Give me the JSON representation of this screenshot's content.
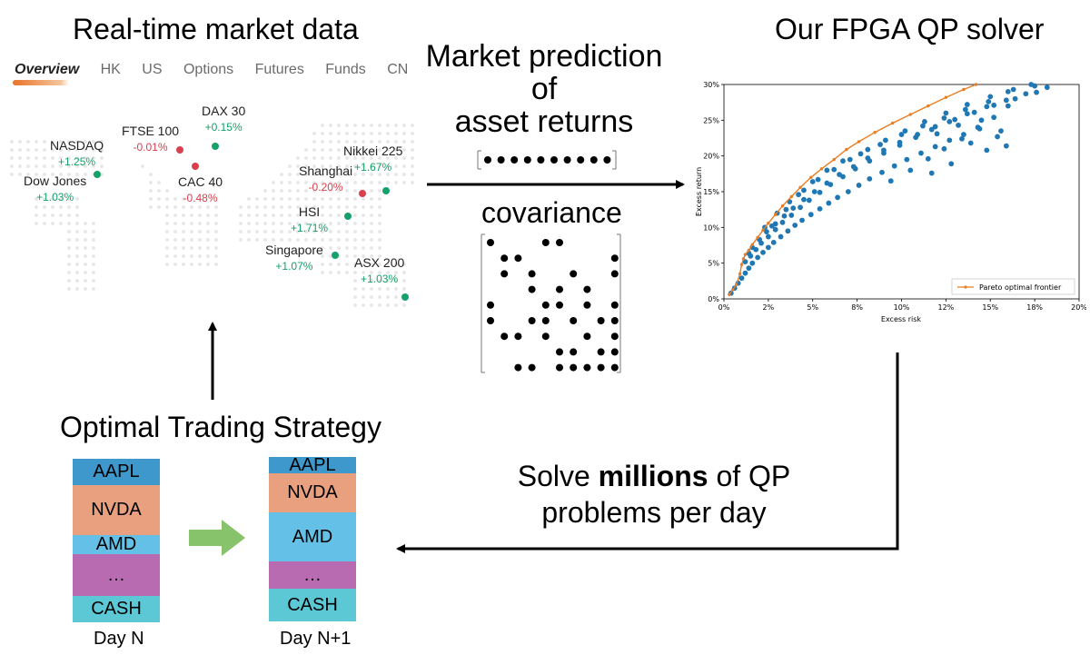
{
  "titles": {
    "market_data": "Real-time market data",
    "solver": "Our FPGA QP solver",
    "prediction": [
      "Market prediction",
      "of",
      "asset returns"
    ],
    "covariance": "covariance",
    "strategy": "Optimal Trading Strategy",
    "solve": [
      "Solve",
      "millions",
      "of QP",
      "problems per day"
    ]
  },
  "tabs": [
    "Overview",
    "HK",
    "US",
    "Options",
    "Futures",
    "Funds",
    "CN"
  ],
  "markets": [
    {
      "name": "DAX 30",
      "change": "+0.15%",
      "dir": "up"
    },
    {
      "name": "FTSE 100",
      "change": "-0.01%",
      "dir": "down"
    },
    {
      "name": "NASDAQ",
      "change": "+1.25%",
      "dir": "up"
    },
    {
      "name": "Dow Jones",
      "change": "+1.03%",
      "dir": "up"
    },
    {
      "name": "CAC 40",
      "change": "-0.48%",
      "dir": "down"
    },
    {
      "name": "Nikkei 225",
      "change": "+1.67%",
      "dir": "up"
    },
    {
      "name": "Shanghai",
      "change": "-0.20%",
      "dir": "down"
    },
    {
      "name": "HSI",
      "change": "+1.71%",
      "dir": "up"
    },
    {
      "name": "Singapore",
      "change": "+1.07%",
      "dir": "up"
    },
    {
      "name": "ASX 200",
      "change": "+1.03%",
      "dir": "up"
    }
  ],
  "portfolio": {
    "day_n_label": "Day N",
    "day_n1_label": "Day N+1",
    "day_n": [
      {
        "label": "AAPL",
        "color": "#3e98cc"
      },
      {
        "label": "NVDA",
        "color": "#e8a07e"
      },
      {
        "label": "AMD",
        "color": "#64c0e6"
      },
      {
        "label": "…",
        "color": "#b86bb0"
      },
      {
        "label": "CASH",
        "color": "#5cc8d6"
      }
    ],
    "day_n1": [
      {
        "label": "AAPL",
        "color": "#3e98cc"
      },
      {
        "label": "NVDA",
        "color": "#e8a07e"
      },
      {
        "label": "AMD",
        "color": "#64c0e6"
      },
      {
        "label": "…",
        "color": "#b86bb0"
      },
      {
        "label": "CASH",
        "color": "#5cc8d6"
      }
    ]
  },
  "colors": {
    "up": "#16a06a",
    "down": "#d8404e",
    "scatter": "#1f77b4",
    "frontier": "#e87d22",
    "transition_arrow": "#86c36a"
  },
  "chart_data": {
    "type": "scatter",
    "xlabel": "Excess risk",
    "ylabel": "Excess return",
    "xlim": [
      0,
      20
    ],
    "ylim": [
      0,
      30
    ],
    "xticks": [
      "0%",
      "2%",
      "5%",
      "8%",
      "10%",
      "12%",
      "15%",
      "18%",
      "20%"
    ],
    "yticks": [
      "0%",
      "5%",
      "10%",
      "15%",
      "20%",
      "25%",
      "30%"
    ],
    "legend": "Pareto optimal frontier",
    "legend_position": "bottom-right",
    "frontier": [
      [
        0.3,
        0.6
      ],
      [
        0.5,
        1.3
      ],
      [
        0.7,
        2.0
      ],
      [
        0.9,
        3.5
      ],
      [
        1.0,
        4.8
      ],
      [
        1.1,
        5.6
      ],
      [
        1.2,
        6.2
      ],
      [
        1.4,
        6.8
      ],
      [
        1.6,
        7.6
      ],
      [
        1.9,
        8.6
      ],
      [
        2.2,
        9.6
      ],
      [
        2.5,
        10.6
      ],
      [
        2.9,
        11.8
      ],
      [
        3.3,
        13.0
      ],
      [
        3.8,
        14.3
      ],
      [
        4.3,
        15.6
      ],
      [
        4.9,
        17.0
      ],
      [
        5.5,
        18.2
      ],
      [
        6.2,
        19.5
      ],
      [
        6.9,
        20.9
      ],
      [
        7.6,
        22.0
      ],
      [
        8.5,
        23.3
      ],
      [
        9.5,
        24.6
      ],
      [
        10.5,
        25.8
      ],
      [
        11.5,
        27.0
      ],
      [
        12.5,
        28.2
      ],
      [
        13.5,
        29.3
      ],
      [
        14.2,
        30.0
      ]
    ],
    "points": [
      [
        0.4,
        0.8
      ],
      [
        0.6,
        1.5
      ],
      [
        0.8,
        2.2
      ],
      [
        1.0,
        2.9
      ],
      [
        1.2,
        3.6
      ],
      [
        1.4,
        4.3
      ],
      [
        1.6,
        5.0
      ],
      [
        1.9,
        5.8
      ],
      [
        2.2,
        6.5
      ],
      [
        2.5,
        7.2
      ],
      [
        2.8,
        7.9
      ],
      [
        3.2,
        8.7
      ],
      [
        3.6,
        9.5
      ],
      [
        4.0,
        10.3
      ],
      [
        4.4,
        11.0
      ],
      [
        4.9,
        11.8
      ],
      [
        5.4,
        12.6
      ],
      [
        5.9,
        13.4
      ],
      [
        6.4,
        14.2
      ],
      [
        7.0,
        15.0
      ],
      [
        7.6,
        15.9
      ],
      [
        8.2,
        16.8
      ],
      [
        8.9,
        17.7
      ],
      [
        9.6,
        18.6
      ],
      [
        10.3,
        19.5
      ],
      [
        11.1,
        20.4
      ],
      [
        11.9,
        21.3
      ],
      [
        12.7,
        22.2
      ],
      [
        13.5,
        23.0
      ],
      [
        14.4,
        23.8
      ],
      [
        1.2,
        5.2
      ],
      [
        1.5,
        6.0
      ],
      [
        1.8,
        6.9
      ],
      [
        2.1,
        7.8
      ],
      [
        2.5,
        8.7
      ],
      [
        2.9,
        9.7
      ],
      [
        3.3,
        10.7
      ],
      [
        3.8,
        11.7
      ],
      [
        4.3,
        12.8
      ],
      [
        4.8,
        13.8
      ],
      [
        5.4,
        14.9
      ],
      [
        6.0,
        16.0
      ],
      [
        6.7,
        17.1
      ],
      [
        7.4,
        18.2
      ],
      [
        8.2,
        19.3
      ],
      [
        9.0,
        20.4
      ],
      [
        9.9,
        21.5
      ],
      [
        10.8,
        22.6
      ],
      [
        11.7,
        23.7
      ],
      [
        12.7,
        24.8
      ],
      [
        13.7,
        25.9
      ],
      [
        14.8,
        26.9
      ],
      [
        15.9,
        27.8
      ],
      [
        17.0,
        28.7
      ],
      [
        18.2,
        29.6
      ],
      [
        1.6,
        7.2
      ],
      [
        2.0,
        8.3
      ],
      [
        2.4,
        9.4
      ],
      [
        2.9,
        10.5
      ],
      [
        3.4,
        11.6
      ],
      [
        3.9,
        12.7
      ],
      [
        4.5,
        13.9
      ],
      [
        5.1,
        15.0
      ],
      [
        5.8,
        16.2
      ],
      [
        6.5,
        17.4
      ],
      [
        7.3,
        18.5
      ],
      [
        8.1,
        19.7
      ],
      [
        9.0,
        20.8
      ],
      [
        9.9,
        21.9
      ],
      [
        10.9,
        23.0
      ],
      [
        11.9,
        24.1
      ],
      [
        13.0,
        25.1
      ],
      [
        14.1,
        26.1
      ],
      [
        15.2,
        27.1
      ],
      [
        16.4,
        28.0
      ],
      [
        17.6,
        28.9
      ],
      [
        2.3,
        10.0
      ],
      [
        3.0,
        12.0
      ],
      [
        3.7,
        13.6
      ],
      [
        4.5,
        15.2
      ],
      [
        5.3,
        16.7
      ],
      [
        6.2,
        18.1
      ],
      [
        7.1,
        19.5
      ],
      [
        8.1,
        20.9
      ],
      [
        9.1,
        22.2
      ],
      [
        10.2,
        23.5
      ],
      [
        11.3,
        24.8
      ],
      [
        12.5,
        26.0
      ],
      [
        13.7,
        27.2
      ],
      [
        15.0,
        28.3
      ],
      [
        16.3,
        29.3
      ],
      [
        17.5,
        29.8
      ],
      [
        1.4,
        6.4
      ],
      [
        2.7,
        10.2
      ],
      [
        3.5,
        12.5
      ],
      [
        4.2,
        14.6
      ],
      [
        5.0,
        16.4
      ],
      [
        5.8,
        18.0
      ],
      [
        6.7,
        19.3
      ],
      [
        7.7,
        20.3
      ],
      [
        8.8,
        21.6
      ],
      [
        10.0,
        23.0
      ],
      [
        11.2,
        24.2
      ],
      [
        12.4,
        25.3
      ],
      [
        13.6,
        26.5
      ],
      [
        14.9,
        27.6
      ],
      [
        16.0,
        29.0
      ],
      [
        17.3,
        30.0
      ],
      [
        9.4,
        16.5
      ],
      [
        10.5,
        18.0
      ],
      [
        11.5,
        19.6
      ],
      [
        12.4,
        21.0
      ],
      [
        13.4,
        22.4
      ],
      [
        14.3,
        24.0
      ],
      [
        15.2,
        25.4
      ],
      [
        15.9,
        21.4
      ],
      [
        15.6,
        23.5
      ],
      [
        14.8,
        20.8
      ],
      [
        13.9,
        21.8
      ],
      [
        12.8,
        18.9
      ],
      [
        11.7,
        17.6
      ],
      [
        16.0,
        27.0
      ],
      [
        15.4,
        22.7
      ],
      [
        14.5,
        25.0
      ],
      [
        13.2,
        24.3
      ],
      [
        12.0,
        23.1
      ]
    ]
  }
}
